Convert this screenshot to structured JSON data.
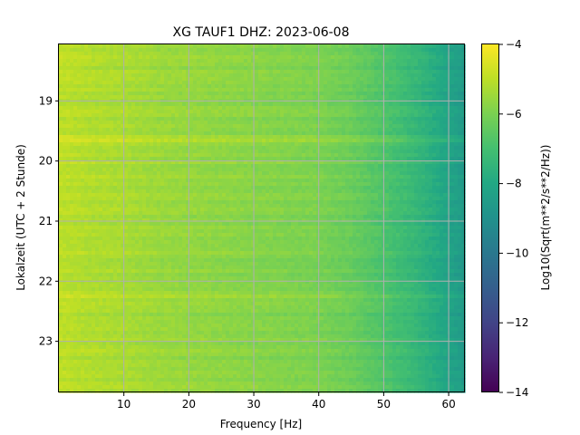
{
  "chart_data": {
    "type": "heatmap",
    "title": "XG TAUF1  DHZ: 2023-06-08",
    "xlabel": "Frequency [Hz]",
    "ylabel": "Lokalzeit (UTC + 2 Stunde)",
    "xlim": [
      0,
      62.5
    ],
    "ylim": [
      18.06,
      23.85
    ],
    "x_ticks": [
      10,
      20,
      30,
      40,
      50,
      60
    ],
    "y_ticks": [
      19,
      20,
      21,
      22,
      23
    ],
    "y_inverted": true,
    "grid": true,
    "colormap": "viridis",
    "colorbar": {
      "label": "Log10(Sqrt(m**2/s**2/Hz))",
      "range": [
        -14,
        -4
      ],
      "ticks": [
        -4,
        -6,
        -8,
        -10,
        -12,
        -14
      ]
    },
    "spectral_profile": {
      "frequency_hz": [
        0,
        5,
        10,
        15,
        20,
        25,
        30,
        35,
        40,
        45,
        50,
        55,
        60,
        62.5
      ],
      "log10_amplitude": [
        -5.0,
        -5.2,
        -5.3,
        -5.5,
        -5.6,
        -5.7,
        -5.8,
        -5.9,
        -6.0,
        -6.3,
        -6.8,
        -7.4,
        -8.2,
        -8.6
      ]
    },
    "bright_bands_hours": [
      19.63,
      20.0,
      22.25
    ]
  }
}
